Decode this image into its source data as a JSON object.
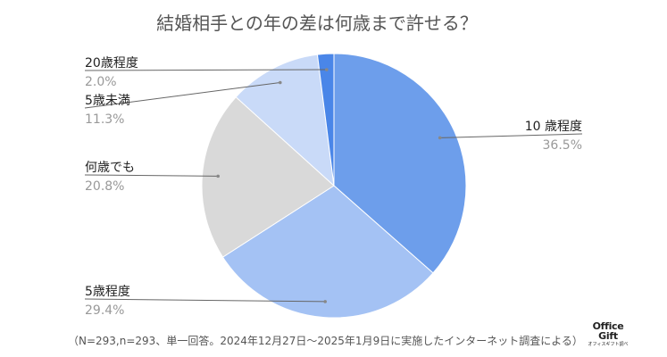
{
  "chart_data": {
    "type": "pie",
    "title": "結婚相手との年の差は何歳まで許せる？",
    "slices": [
      {
        "label": "10 歳程度",
        "value": 36.5,
        "display": "36.5%",
        "color": "#6d9eeb"
      },
      {
        "label": "5歳程度",
        "value": 29.4,
        "display": "29.4%",
        "color": "#a4c2f4"
      },
      {
        "label": "何歳でも",
        "value": 20.8,
        "display": "20.8%",
        "color": "#d9d9d9"
      },
      {
        "label": "5歳未満",
        "value": 11.3,
        "display": "11.3%",
        "color": "#c9daf8"
      },
      {
        "label": "20歳程度",
        "value": 2.0,
        "display": "2.0%",
        "color": "#4a86e8"
      }
    ],
    "legend": "none",
    "label_placement": "outside with leader lines"
  },
  "footnote": "（N=293,n=293、単一回答。2024年12月27日～2025年1月9日に実施したインターネット調査による）",
  "logo": {
    "line1": "Office",
    "line2": "Gift",
    "line3": "オフィスギフト調べ"
  }
}
